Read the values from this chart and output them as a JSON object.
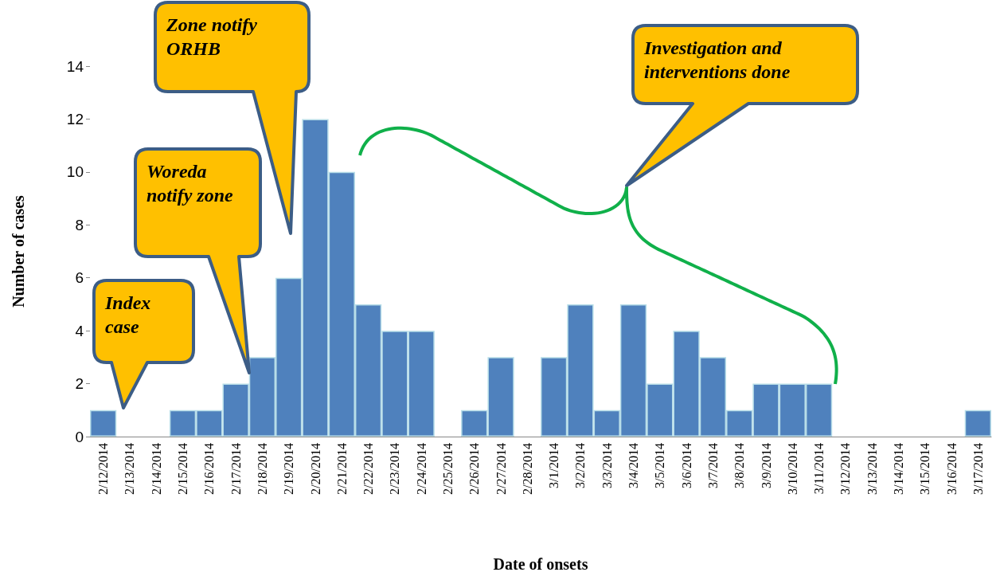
{
  "chart_data": {
    "type": "bar",
    "xlabel": "Date of onsets",
    "ylabel": "Number of cases",
    "categories": [
      "2/12/2014",
      "2/13/2014",
      "2/14/2014",
      "2/15/2014",
      "2/16/2014",
      "2/17/2014",
      "2/18/2014",
      "2/19/2014",
      "2/20/2014",
      "2/21/2014",
      "2/22/2014",
      "2/23/2014",
      "2/24/2014",
      "2/25/2014",
      "2/26/2014",
      "2/27/2014",
      "2/28/2014",
      "3/1/2014",
      "3/2/2014",
      "3/3/2014",
      "3/4/2014",
      "3/5/2014",
      "3/6/2014",
      "3/7/2014",
      "3/8/2014",
      "3/9/2014",
      "3/10/2014",
      "3/11/2014",
      "3/12/2014",
      "3/13/2014",
      "3/14/2014",
      "3/15/2014",
      "3/16/2014",
      "3/17/2014"
    ],
    "values": [
      1,
      0,
      0,
      1,
      1,
      2,
      3,
      6,
      12,
      10,
      5,
      4,
      4,
      0,
      1,
      3,
      0,
      3,
      5,
      1,
      5,
      2,
      4,
      3,
      1,
      2,
      2,
      2,
      0,
      0,
      0,
      0,
      0,
      1
    ],
    "color": "#4f81bd",
    "ylim": [
      0,
      14
    ],
    "yticks": [
      0,
      2,
      4,
      6,
      8,
      10,
      12,
      14
    ],
    "grid": false,
    "annotations": [
      "Index case",
      "Woreda notify zone",
      "Zone notify ORHB",
      "Investigation and interventions done"
    ]
  }
}
